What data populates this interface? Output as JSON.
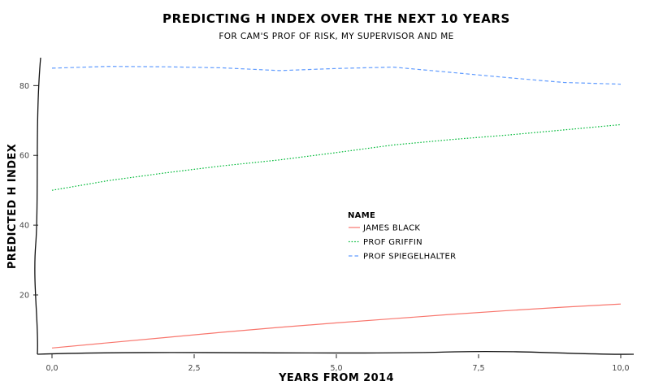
{
  "chart_data": {
    "type": "line",
    "title": "PREDICTING H INDEX OVER THE NEXT 10 YEARS",
    "subtitle": "FOR CAM'S PROF OF RISK, MY SUPERVISOR AND ME",
    "xlabel": "YEARS FROM 2014",
    "ylabel": "PREDICTED H INDEX",
    "xlim": [
      0,
      10
    ],
    "ylim": [
      3,
      88
    ],
    "x_ticks": [
      0,
      2.5,
      5,
      7.5,
      10
    ],
    "x_tick_labels": [
      "0,0",
      "2,5",
      "5,0",
      "7,5",
      "10,0"
    ],
    "y_ticks": [
      20,
      40,
      60,
      80
    ],
    "y_tick_labels": [
      "20",
      "40",
      "60",
      "80"
    ],
    "grid": false,
    "legend": {
      "title": "NAME",
      "placement": "center"
    },
    "series": [
      {
        "name": "JAMES BLACK",
        "color": "#f8766d",
        "dash": "solid",
        "x": [
          0,
          1,
          2,
          3,
          4,
          5,
          6,
          7,
          8,
          9,
          10
        ],
        "values": [
          4.8,
          6.3,
          7.8,
          9.3,
          10.7,
          12.0,
          13.2,
          14.4,
          15.5,
          16.5,
          17.4
        ]
      },
      {
        "name": "PROF GRIFFIN",
        "color": "#00ba38",
        "dash": "dotted",
        "x": [
          0,
          1,
          2,
          3,
          4,
          5,
          6,
          7,
          8,
          9,
          10
        ],
        "values": [
          50.0,
          52.8,
          55.0,
          57.0,
          58.7,
          60.8,
          63.0,
          64.5,
          65.8,
          67.3,
          68.8
        ]
      },
      {
        "name": "PROF SPIEGELHALTER",
        "color": "#619cff",
        "dash": "dashed",
        "x": [
          0,
          1,
          2,
          3,
          4,
          5,
          6,
          7,
          8,
          9,
          10
        ],
        "values": [
          85.0,
          85.5,
          85.4,
          85.1,
          84.3,
          84.9,
          85.3,
          83.8,
          82.3,
          80.9,
          80.4
        ]
      }
    ]
  }
}
